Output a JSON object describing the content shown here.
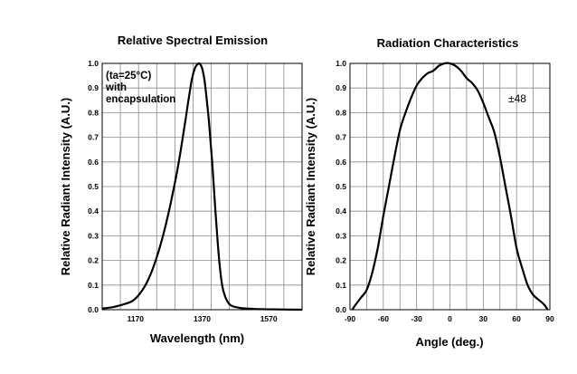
{
  "chart_data": [
    {
      "type": "line",
      "title": "Relative Spectral Emission",
      "xlabel": "Wavelength (nm)",
      "ylabel": "Relative Radiant Intensity (A.U.)",
      "xlim": [
        1070,
        1670
      ],
      "ylim": [
        0,
        1.0
      ],
      "xticks": [
        1170,
        1370,
        1570
      ],
      "xtick_labels": [
        "1170",
        "1370",
        "1570"
      ],
      "yticks": [
        0.0,
        0.1,
        0.2,
        0.3,
        0.4,
        0.5,
        0.6,
        0.7,
        0.8,
        0.9,
        1.0
      ],
      "ytick_labels": [
        "0.0",
        "0.1",
        "0.2",
        "0.3",
        "0.4",
        "0.5",
        "0.6",
        "0.7",
        "0.8",
        "0.9",
        "1.0"
      ],
      "grid": true,
      "annotation": [
        "(ta=25°C)",
        "with",
        "encapsulation"
      ],
      "series": [
        {
          "x": [
            1070,
            1100,
            1130,
            1160,
            1180,
            1200,
            1220,
            1240,
            1260,
            1280,
            1300,
            1320,
            1330,
            1340,
            1350,
            1360,
            1365,
            1370,
            1375,
            1380,
            1390,
            1400,
            1410,
            1420,
            1430,
            1440,
            1450,
            1460,
            1480,
            1500,
            1530,
            1560,
            1600,
            1670
          ],
          "values": [
            0.005,
            0.01,
            0.02,
            0.035,
            0.06,
            0.1,
            0.16,
            0.24,
            0.34,
            0.46,
            0.6,
            0.77,
            0.86,
            0.94,
            0.985,
            1.0,
            0.995,
            0.98,
            0.95,
            0.9,
            0.77,
            0.6,
            0.4,
            0.22,
            0.1,
            0.05,
            0.025,
            0.015,
            0.008,
            0.005,
            0.003,
            0.002,
            0.001,
            0.0
          ]
        }
      ]
    },
    {
      "type": "line",
      "title": "Radiation Characteristics",
      "xlabel": "Angle (deg.)",
      "ylabel": "Relative Radiant Intensity (A.U.)",
      "xlim": [
        -90,
        90
      ],
      "ylim": [
        0,
        1.0
      ],
      "xticks": [
        -90,
        -60,
        -30,
        0,
        30,
        60,
        90
      ],
      "xtick_labels": [
        "-90",
        "-60",
        "-30",
        "0",
        "30",
        "60",
        "90"
      ],
      "yticks": [
        0.0,
        0.1,
        0.2,
        0.3,
        0.4,
        0.5,
        0.6,
        0.7,
        0.8,
        0.9,
        1.0
      ],
      "ytick_labels": [
        "0.0",
        "0.1",
        "0.2",
        "0.3",
        "0.4",
        "0.5",
        "0.6",
        "0.7",
        "0.8",
        "0.9",
        "1.0"
      ],
      "grid": true,
      "annotation": [
        "±48"
      ],
      "series": [
        {
          "x": [
            -88,
            -85,
            -80,
            -75,
            -70,
            -65,
            -60,
            -55,
            -50,
            -45,
            -40,
            -35,
            -30,
            -25,
            -20,
            -15,
            -10,
            -5,
            0,
            5,
            10,
            15,
            20,
            25,
            30,
            35,
            40,
            45,
            50,
            55,
            60,
            65,
            70,
            75,
            80,
            85,
            88
          ],
          "values": [
            0.0,
            0.02,
            0.05,
            0.08,
            0.15,
            0.25,
            0.38,
            0.5,
            0.62,
            0.73,
            0.8,
            0.86,
            0.91,
            0.94,
            0.96,
            0.97,
            0.99,
            1.0,
            1.0,
            0.99,
            0.97,
            0.94,
            0.92,
            0.89,
            0.84,
            0.78,
            0.72,
            0.62,
            0.5,
            0.38,
            0.25,
            0.17,
            0.1,
            0.06,
            0.04,
            0.02,
            0.0
          ]
        }
      ]
    }
  ]
}
